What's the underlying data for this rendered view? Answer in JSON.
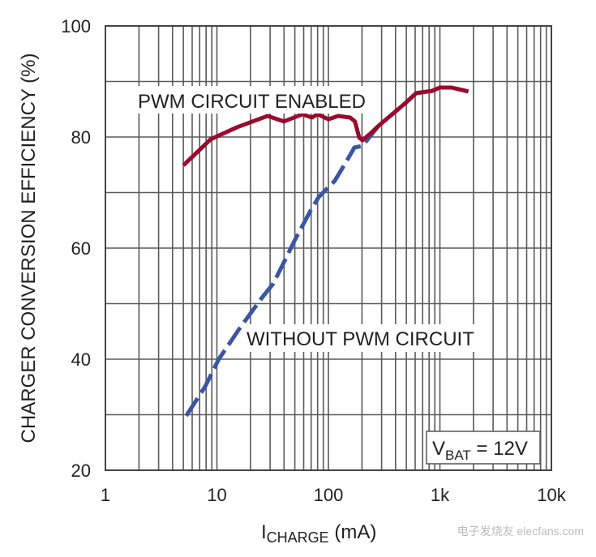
{
  "chart_data": {
    "type": "line",
    "title": "",
    "xlabel": "I",
    "xlabel_sub": "CHARGE",
    "xlabel_unit": " (mA)",
    "ylabel": "CHARGER CONVERSION EFFICIENCY (%)",
    "xscale": "log",
    "xlim": [
      1,
      10000
    ],
    "ylim": [
      20,
      100
    ],
    "x_ticks": [
      {
        "v": 1,
        "label": "1"
      },
      {
        "v": 10,
        "label": "10"
      },
      {
        "v": 100,
        "label": "100"
      },
      {
        "v": 1000,
        "label": "1k"
      },
      {
        "v": 10000,
        "label": "10k"
      }
    ],
    "y_ticks": [
      {
        "v": 20,
        "label": "20"
      },
      {
        "v": 40,
        "label": "40"
      },
      {
        "v": 60,
        "label": "60"
      },
      {
        "v": 80,
        "label": "80"
      },
      {
        "v": 100,
        "label": "100"
      }
    ],
    "grid": true,
    "series": [
      {
        "name": "PWM CIRCUIT ENABLED",
        "color": "#9b0a2e",
        "style": "solid",
        "x": [
          5,
          8.8,
          15.3,
          28.5,
          39.8,
          58.5,
          71,
          80,
          100,
          122,
          157,
          173,
          189,
          202,
          237,
          281,
          490,
          612,
          850,
          1000,
          1270,
          1800
        ],
        "y": [
          74.9,
          79.6,
          81.8,
          83.8,
          82.8,
          84.1,
          83.5,
          84.1,
          83.2,
          83.8,
          83.5,
          82.8,
          79.9,
          79.4,
          80.6,
          82.0,
          86.1,
          87.9,
          88.3,
          88.9,
          88.9,
          88.2
        ]
      },
      {
        "name": "WITHOUT PWM CIRCUIT",
        "color": "#3a55a4",
        "style": "dashed",
        "x": [
          5.3,
          7.8,
          10.4,
          16.3,
          25.4,
          32,
          37.8,
          49.6,
          69,
          82,
          97,
          114,
          144,
          171,
          202,
          281,
          490,
          612,
          850,
          1000,
          1270,
          1800
        ],
        "y": [
          29.8,
          35.0,
          40.0,
          45.8,
          51.1,
          53.6,
          56.5,
          61.3,
          66.7,
          69.2,
          70.7,
          72.1,
          75.5,
          78.1,
          78.4,
          82.0,
          86.1,
          87.9,
          88.3,
          88.9,
          88.9,
          88.2
        ]
      }
    ],
    "annotations": {
      "pwm_label": "PWM CIRCUIT ENABLED",
      "nopwm_label": "WITHOUT PWM CIRCUIT",
      "vbat_v": "V",
      "vbat_sub": "BAT",
      "vbat_value": " = 12V"
    }
  },
  "watermark": "电子发烧友 elecfans.com"
}
